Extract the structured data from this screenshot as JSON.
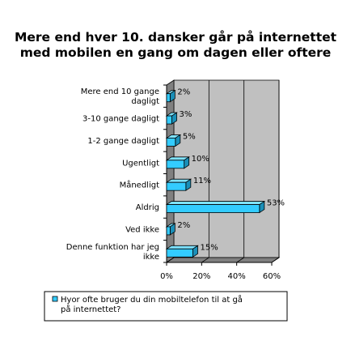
{
  "chart_data": {
    "type": "bar",
    "orientation": "horizontal",
    "title_lines": [
      "Mere end hver 10. dansker går på internettet",
      "med mobilen en gang om dagen eller oftere"
    ],
    "categories": [
      [
        "Mere end 10 gange",
        "dagligt"
      ],
      [
        "3-10 gange dagligt"
      ],
      [
        "1-2 gange dagligt"
      ],
      [
        "Ugentligt"
      ],
      [
        "Månedligt"
      ],
      [
        "Aldrig"
      ],
      [
        "Ved ikke"
      ],
      [
        "Denne funktion har jeg",
        "ikke"
      ]
    ],
    "series": [
      {
        "name_lines": [
          "Hyor ofte bruger du din mobiltelefon til at gå",
          "på internettet?"
        ],
        "values": [
          2,
          3,
          5,
          10,
          11,
          53,
          2,
          15
        ],
        "labels": [
          "2%",
          "3%",
          "5%",
          "10%",
          "11%",
          "53%",
          "2%",
          "15%"
        ]
      }
    ],
    "xlim": [
      0,
      60
    ],
    "xticks": [
      0,
      20,
      40,
      60
    ],
    "xtick_labels": [
      "0%",
      "20%",
      "40%",
      "60%"
    ],
    "grid": "vertical",
    "three_d": true,
    "legend_position": "bottom",
    "colors": {
      "bar_front": "#33CCFF",
      "bar_top": "#7FE3FF",
      "bar_side": "#1A8FB8",
      "wall": "#C0C0C0",
      "floor": "#808080",
      "grid": "#000000",
      "legend_swatch": "#33CCFF"
    }
  }
}
